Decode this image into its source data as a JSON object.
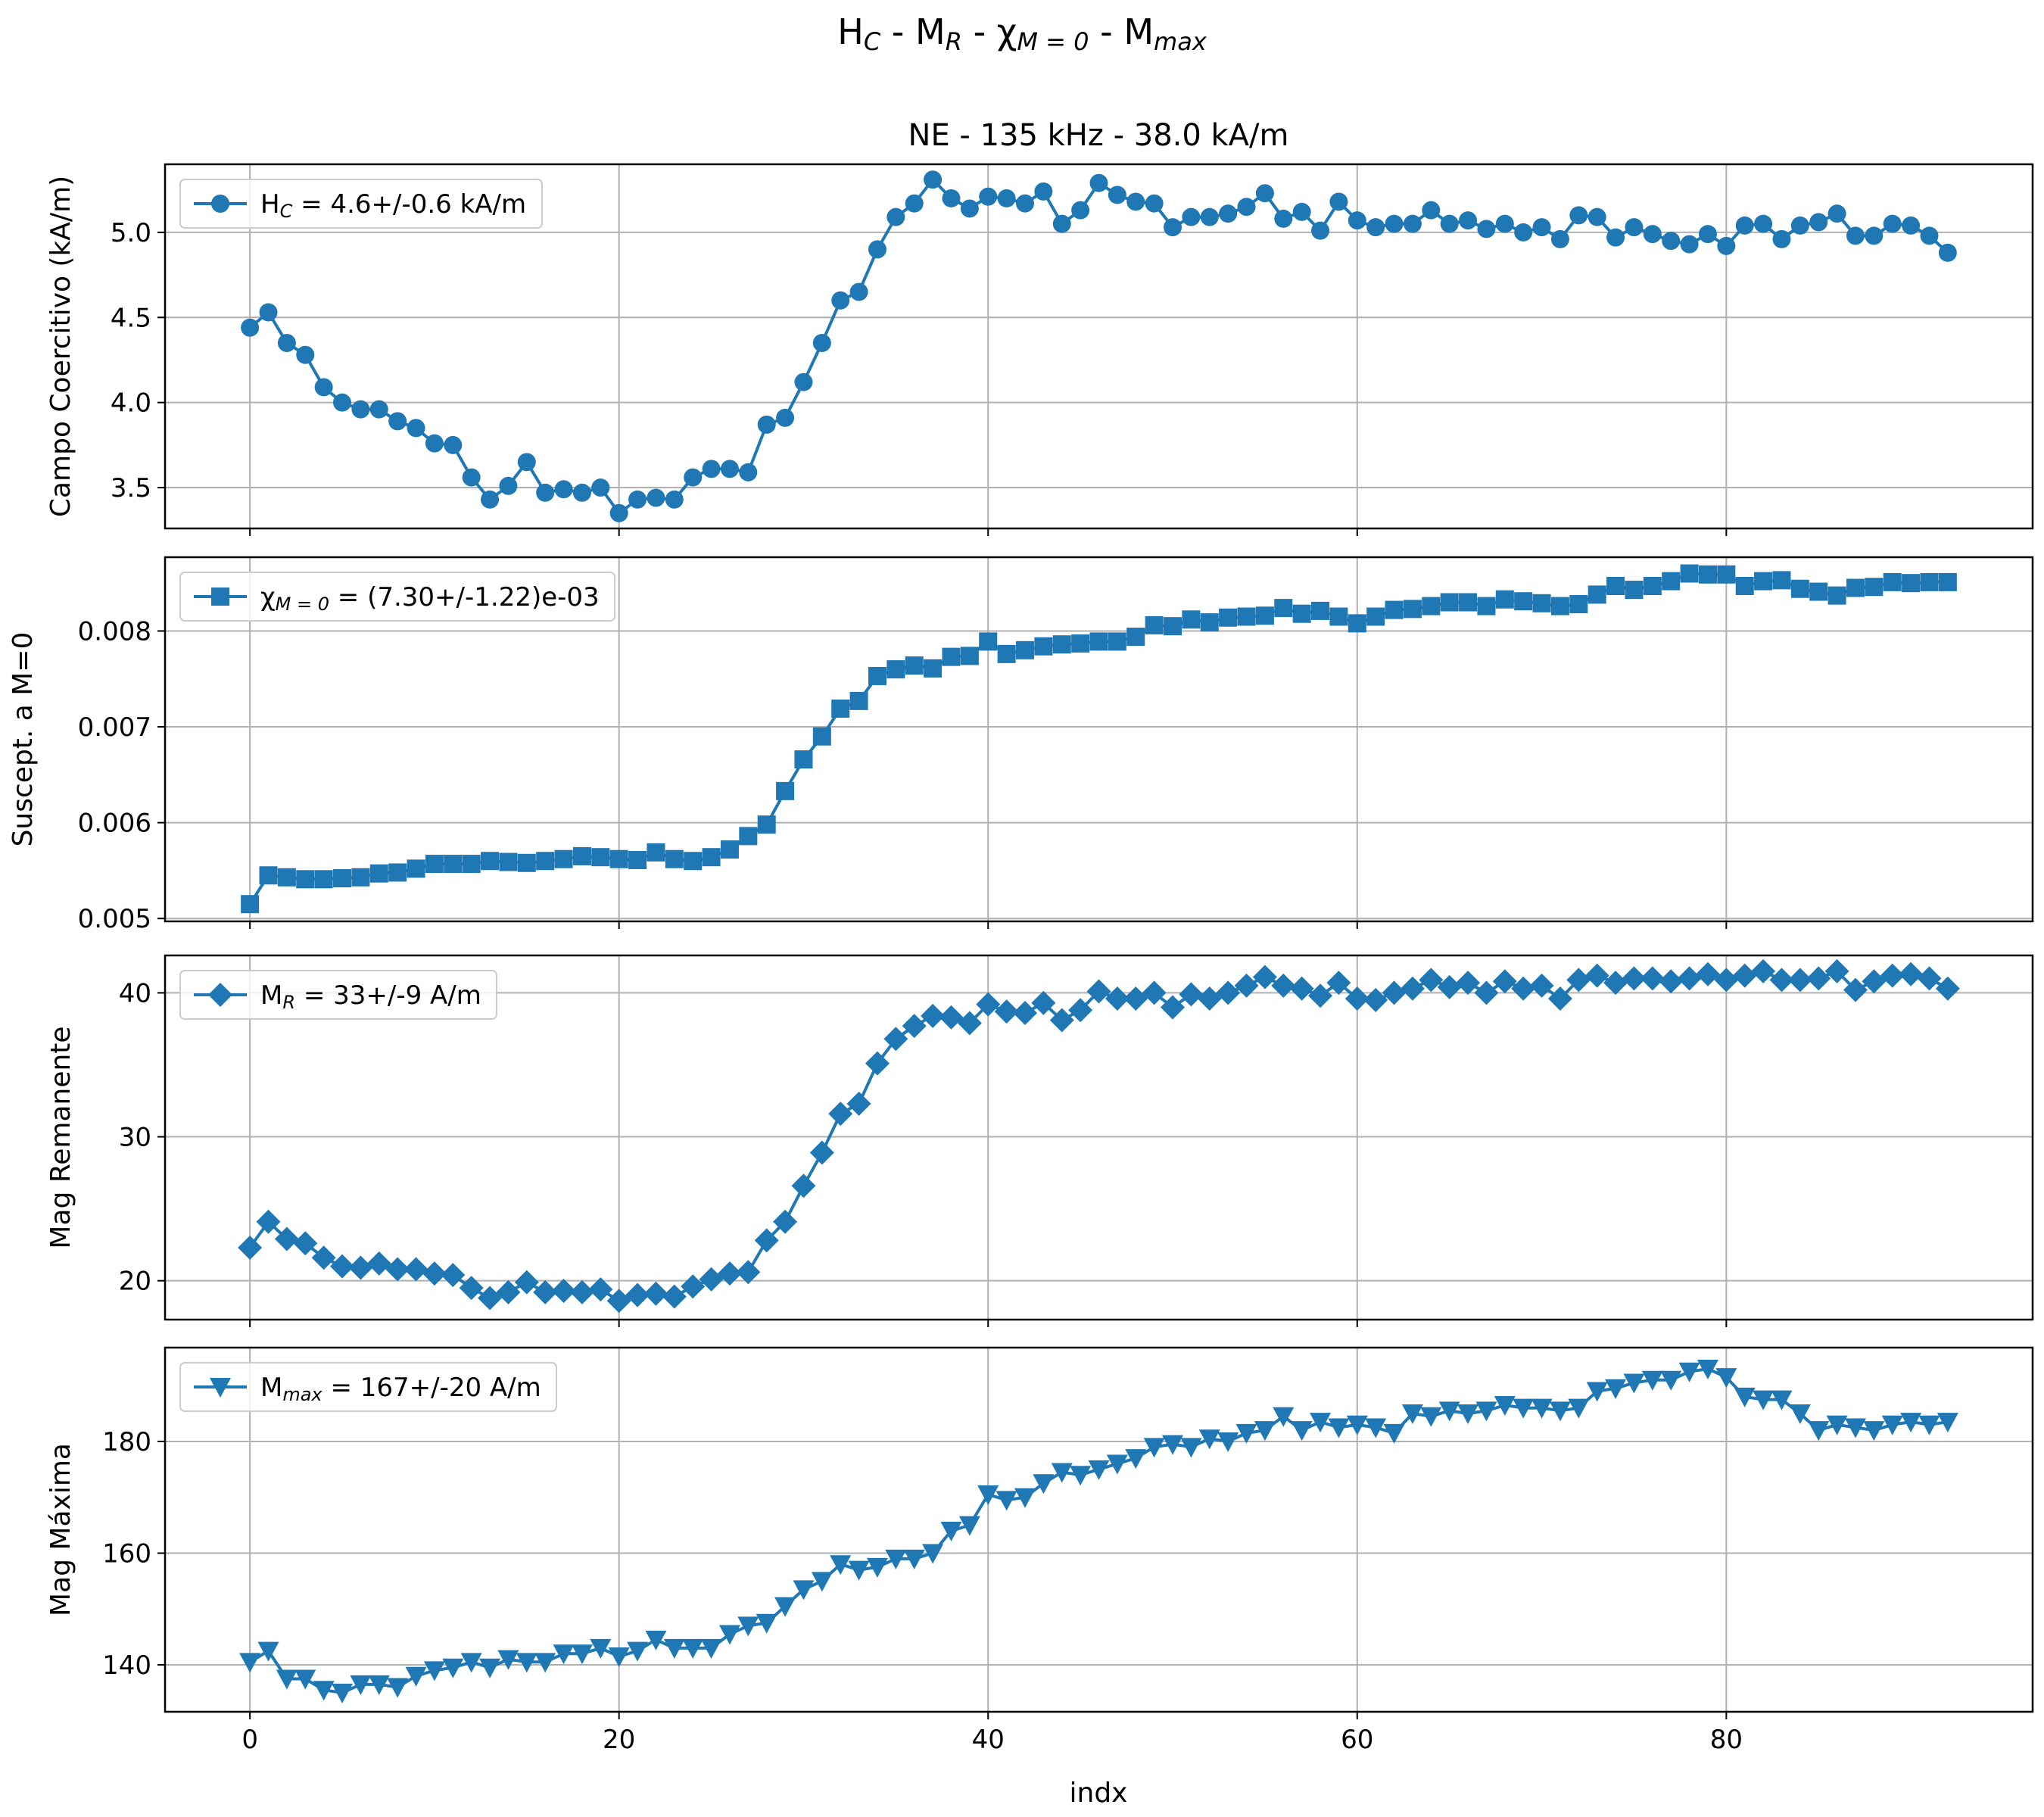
{
  "figure": {
    "suptitle_parts": [
      {
        "t": "H",
        "s": false
      },
      {
        "t": "C",
        "s": true
      },
      {
        "t": " - M",
        "s": false
      },
      {
        "t": "R",
        "s": true
      },
      {
        "t": " - χ",
        "s": false
      },
      {
        "t": "M = 0",
        "s": true
      },
      {
        "t": " - M",
        "s": false
      },
      {
        "t": "max",
        "s": true
      }
    ],
    "subtitle": "NE - 135 kHz - 38.0 kA/m",
    "xlabel": "indx",
    "line_color": "#1f77b4"
  },
  "chart_data": [
    {
      "type": "line",
      "ylabel": "Campo Coercitivo (kA/m)",
      "marker": "circle",
      "xlim": [
        -4.6,
        96.6
      ],
      "ylim": [
        3.26,
        5.4
      ],
      "yticks": [
        3.5,
        4.0,
        4.5,
        5.0
      ],
      "ytick_labels": [
        "3.5",
        "4.0",
        "4.5",
        "5.0"
      ],
      "legend_parts": [
        {
          "t": "H",
          "s": false
        },
        {
          "t": "C",
          "s": true
        },
        {
          "t": " = 4.6+/-0.6 kA/m",
          "s": false
        }
      ],
      "y": [
        4.44,
        4.53,
        4.35,
        4.28,
        4.09,
        4.0,
        3.96,
        3.96,
        3.89,
        3.85,
        3.76,
        3.75,
        3.56,
        3.43,
        3.51,
        3.65,
        3.47,
        3.49,
        3.47,
        3.5,
        3.35,
        3.43,
        3.44,
        3.43,
        3.56,
        3.61,
        3.61,
        3.59,
        3.87,
        3.91,
        4.12,
        4.35,
        4.6,
        4.65,
        4.9,
        5.09,
        5.17,
        5.31,
        5.2,
        5.14,
        5.21,
        5.2,
        5.17,
        5.24,
        5.05,
        5.13,
        5.29,
        5.22,
        5.18,
        5.17,
        5.03,
        5.09,
        5.09,
        5.11,
        5.15,
        5.23,
        5.08,
        5.12,
        5.01,
        5.18,
        5.07,
        5.03,
        5.05,
        5.05,
        5.13,
        5.05,
        5.07,
        5.02,
        5.05,
        5.0,
        5.03,
        4.96,
        5.1,
        5.09,
        4.97,
        5.03,
        4.99,
        4.95,
        4.93,
        4.99,
        4.92,
        5.04,
        5.05,
        4.96,
        5.04,
        5.06,
        5.11,
        4.98,
        4.98,
        5.05,
        5.04,
        4.98,
        4.88
      ]
    },
    {
      "type": "line",
      "ylabel": "Suscept. a M=0",
      "marker": "square",
      "xlim": [
        -4.6,
        96.6
      ],
      "ylim": [
        0.00497,
        0.00877
      ],
      "yticks": [
        0.005,
        0.006,
        0.007,
        0.008
      ],
      "ytick_labels": [
        "0.005",
        "0.006",
        "0.007",
        "0.008"
      ],
      "legend_parts": [
        {
          "t": "χ",
          "s": false
        },
        {
          "t": "M = 0",
          "s": true
        },
        {
          "t": " = (7.30+/-1.22)e-03",
          "s": false
        }
      ],
      "y": [
        0.00515,
        0.00545,
        0.00543,
        0.00541,
        0.00541,
        0.00542,
        0.00543,
        0.00547,
        0.00548,
        0.00552,
        0.00557,
        0.00557,
        0.00557,
        0.0056,
        0.00559,
        0.00558,
        0.0056,
        0.00562,
        0.00565,
        0.00564,
        0.00562,
        0.00561,
        0.00569,
        0.00562,
        0.0056,
        0.00564,
        0.00572,
        0.00586,
        0.00598,
        0.00633,
        0.00666,
        0.0069,
        0.00719,
        0.00727,
        0.00753,
        0.0076,
        0.00764,
        0.00761,
        0.00773,
        0.00774,
        0.00789,
        0.00776,
        0.0078,
        0.00784,
        0.00786,
        0.00787,
        0.00789,
        0.00789,
        0.00794,
        0.00806,
        0.00805,
        0.00812,
        0.00809,
        0.00814,
        0.00815,
        0.00816,
        0.00824,
        0.00818,
        0.00821,
        0.00815,
        0.00808,
        0.00815,
        0.00822,
        0.00823,
        0.00826,
        0.0083,
        0.0083,
        0.00826,
        0.00833,
        0.00831,
        0.00829,
        0.00826,
        0.00828,
        0.00838,
        0.00847,
        0.00843,
        0.00847,
        0.00852,
        0.0086,
        0.00859,
        0.00859,
        0.00847,
        0.00852,
        0.00853,
        0.00844,
        0.00841,
        0.00837,
        0.00845,
        0.00846,
        0.00851,
        0.0085,
        0.00851,
        0.00851
      ]
    },
    {
      "type": "line",
      "ylabel": "Mag Remanente",
      "marker": "diamond",
      "xlim": [
        -4.6,
        96.6
      ],
      "ylim": [
        17.3,
        42.6
      ],
      "yticks": [
        20,
        30,
        40
      ],
      "ytick_labels": [
        "20",
        "30",
        "40"
      ],
      "legend_parts": [
        {
          "t": "M",
          "s": false
        },
        {
          "t": "R",
          "s": true
        },
        {
          "t": " = 33+/-9 A/m",
          "s": false
        }
      ],
      "y": [
        22.3,
        24.1,
        22.9,
        22.6,
        21.6,
        21.0,
        20.9,
        21.2,
        20.8,
        20.8,
        20.5,
        20.4,
        19.5,
        18.8,
        19.2,
        19.9,
        19.2,
        19.3,
        19.2,
        19.4,
        18.6,
        19.0,
        19.1,
        18.9,
        19.6,
        20.1,
        20.5,
        20.6,
        22.8,
        24.1,
        26.6,
        28.9,
        31.6,
        32.3,
        35.1,
        36.8,
        37.7,
        38.4,
        38.3,
        37.9,
        39.2,
        38.7,
        38.6,
        39.3,
        38.1,
        38.8,
        40.1,
        39.6,
        39.6,
        40.0,
        39.0,
        39.9,
        39.6,
        40.0,
        40.5,
        41.1,
        40.5,
        40.3,
        39.8,
        40.7,
        39.6,
        39.5,
        40.0,
        40.3,
        40.9,
        40.4,
        40.7,
        40.0,
        40.8,
        40.3,
        40.5,
        39.6,
        40.9,
        41.2,
        40.7,
        41.0,
        41.0,
        40.8,
        41.0,
        41.3,
        40.9,
        41.2,
        41.5,
        40.9,
        40.9,
        41.0,
        41.5,
        40.2,
        40.8,
        41.2,
        41.3,
        41.0,
        40.3
      ]
    },
    {
      "type": "line",
      "ylabel": "Mag Máxima",
      "marker": "triangle-down",
      "xlim": [
        -4.6,
        96.6
      ],
      "ylim": [
        131.6,
        196.8
      ],
      "yticks": [
        140,
        160,
        180
      ],
      "ytick_labels": [
        "140",
        "160",
        "180"
      ],
      "legend_parts": [
        {
          "t": "M",
          "s": false
        },
        {
          "t": "max",
          "s": true
        },
        {
          "t": " = 167+/-20 A/m",
          "s": false
        }
      ],
      "y": [
        140.5,
        142.5,
        137.5,
        137.5,
        135.5,
        135.0,
        136.5,
        136.5,
        136.0,
        138.0,
        139.0,
        139.5,
        140.5,
        139.5,
        141.0,
        140.5,
        140.5,
        142.0,
        142.0,
        143.0,
        141.5,
        142.5,
        144.5,
        143.0,
        143.0,
        143.0,
        145.5,
        147.0,
        147.5,
        150.5,
        153.5,
        155.0,
        158.0,
        157.0,
        157.5,
        159.0,
        159.0,
        160.0,
        164.0,
        165.0,
        170.5,
        169.5,
        170.0,
        172.5,
        174.5,
        174.0,
        175.0,
        176.0,
        177.0,
        179.0,
        179.5,
        179.0,
        180.5,
        180.0,
        181.5,
        182.0,
        184.5,
        182.0,
        183.5,
        182.5,
        183.0,
        182.5,
        181.5,
        185.0,
        184.5,
        185.5,
        185.0,
        185.5,
        186.5,
        186.0,
        186.0,
        185.5,
        186.0,
        189.0,
        189.5,
        190.5,
        191.0,
        191.0,
        192.5,
        193.0,
        191.5,
        188.0,
        187.5,
        187.5,
        185.0,
        182.0,
        183.0,
        182.5,
        182.0,
        183.0,
        183.5,
        183.0,
        183.5
      ]
    }
  ],
  "xaxis": {
    "ticks": [
      0,
      20,
      40,
      60,
      80
    ],
    "tick_labels": [
      "0",
      "20",
      "40",
      "60",
      "80"
    ]
  }
}
